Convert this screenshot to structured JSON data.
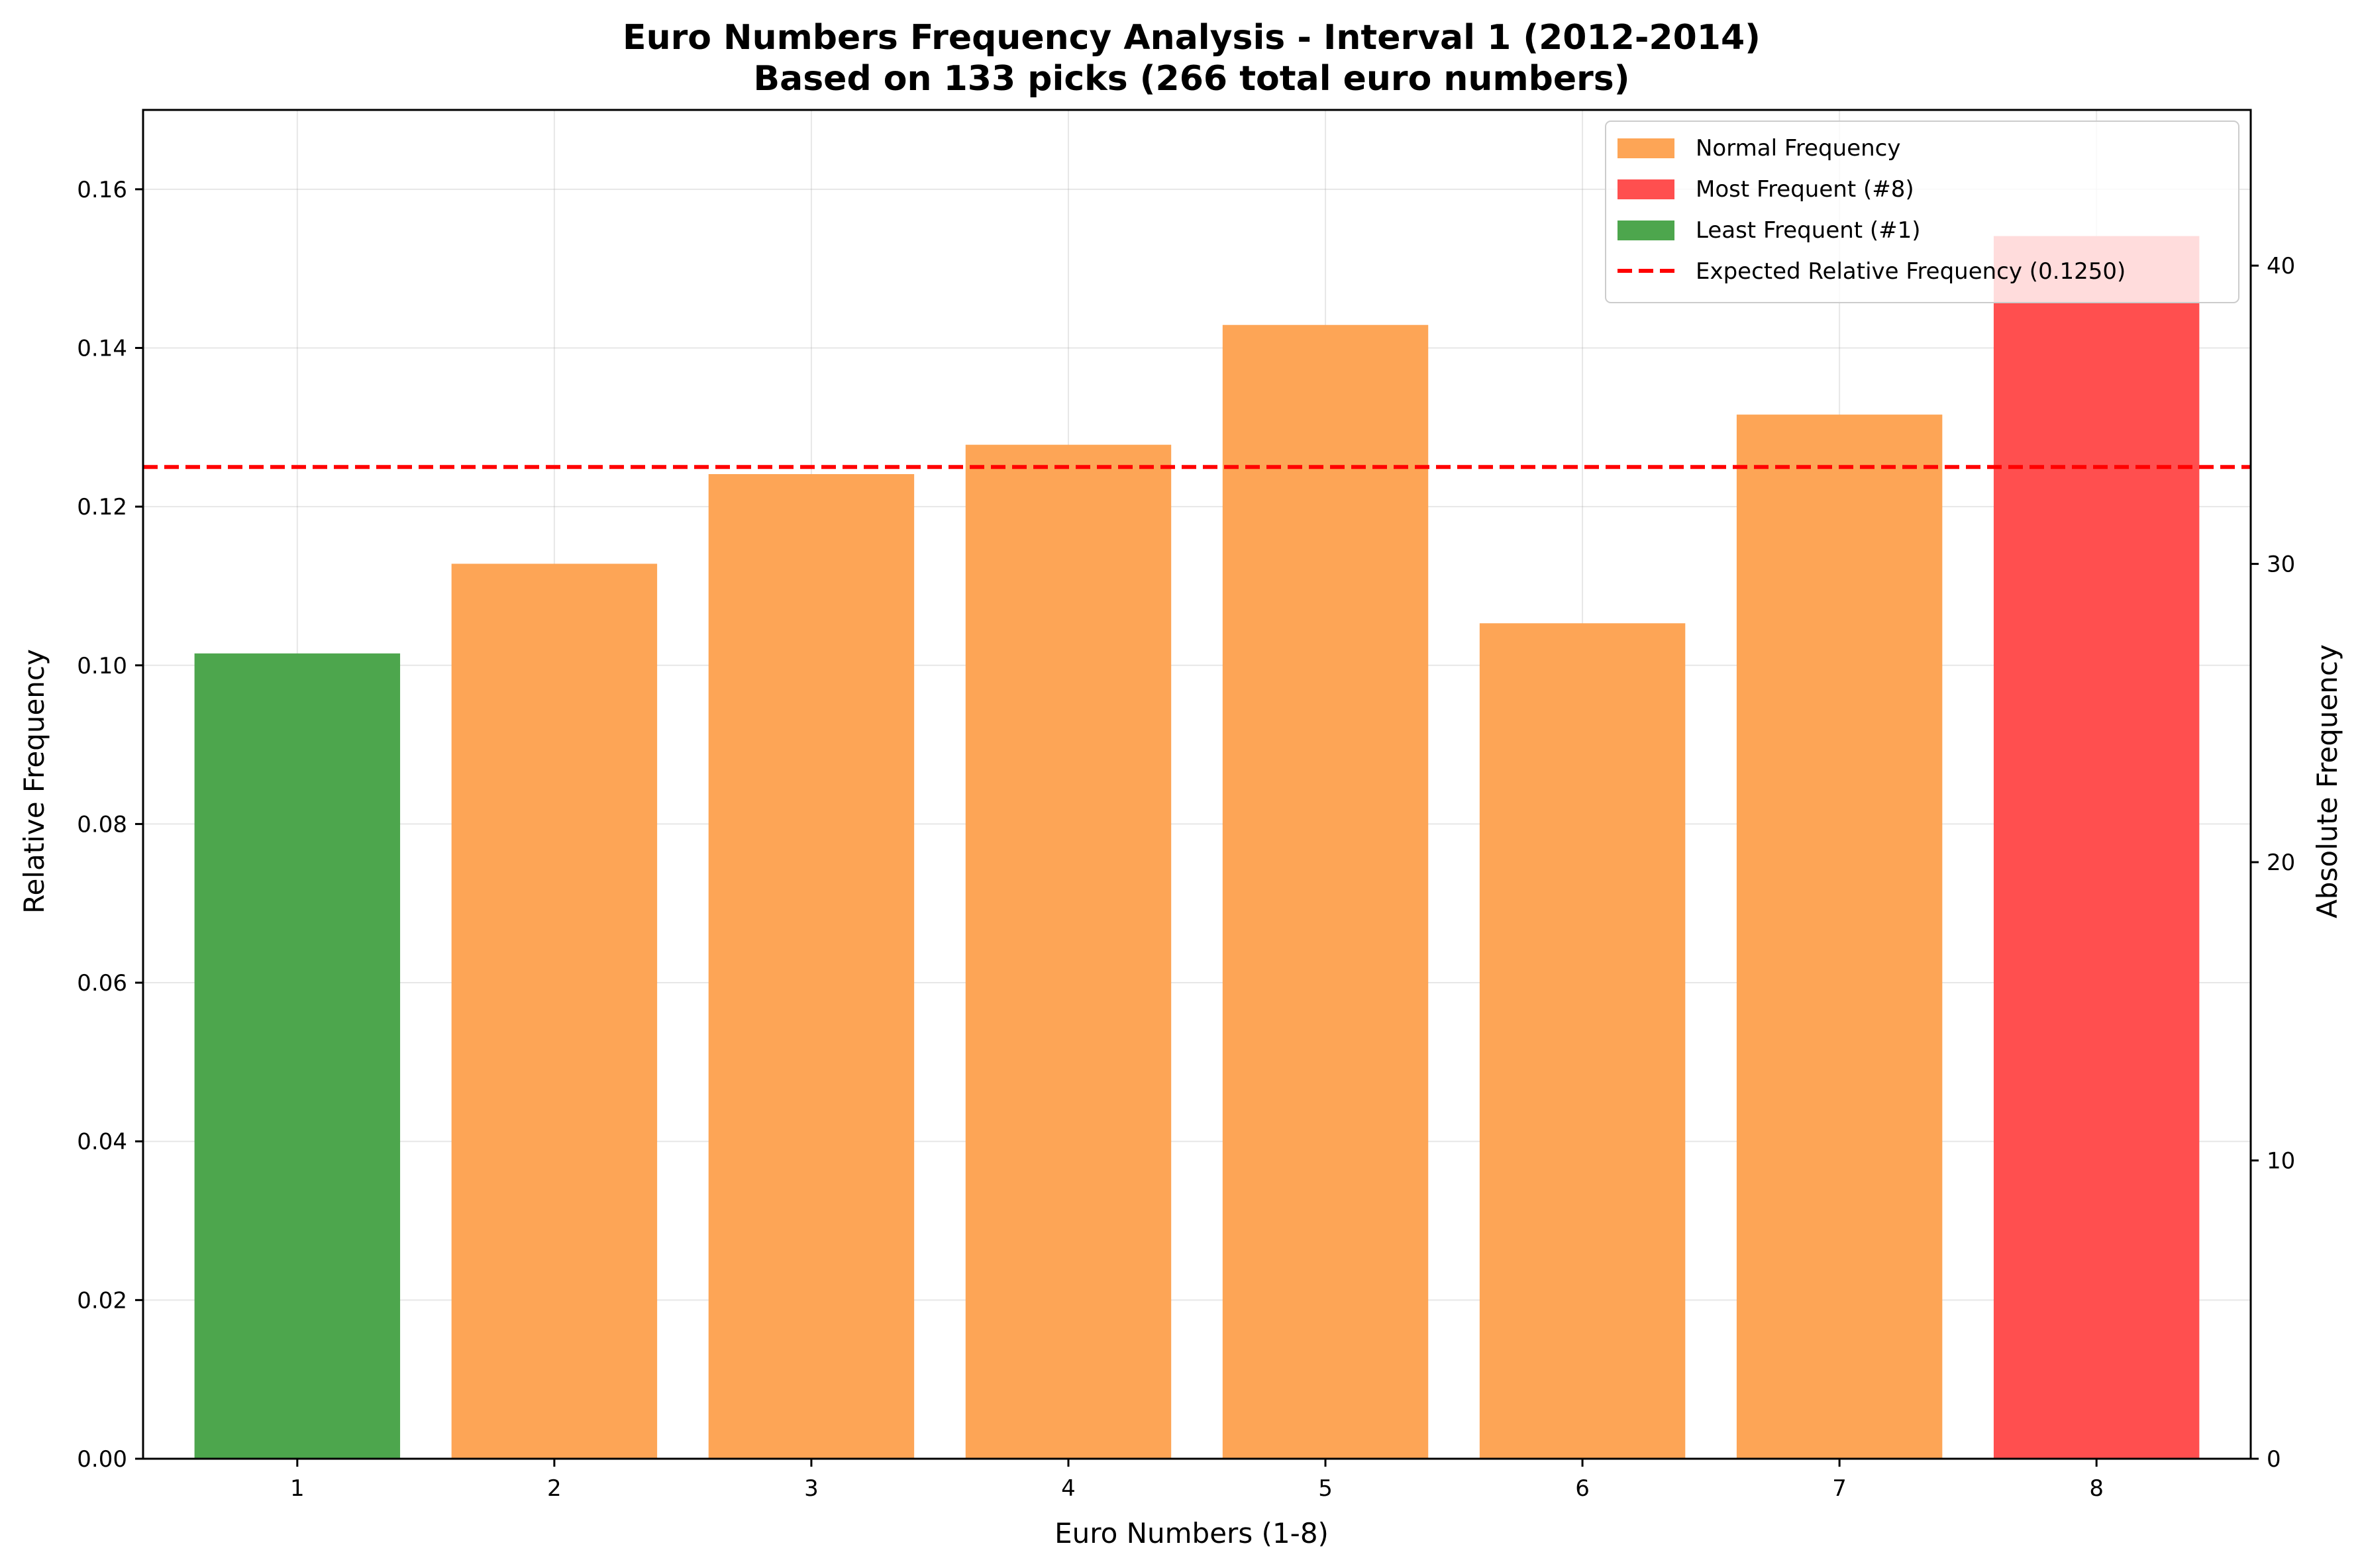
{
  "chart_data": {
    "type": "bar",
    "title": "Euro Numbers Frequency Analysis - Interval 1 (2012-2014)",
    "subtitle": "Based on 133 picks (266 total euro numbers)",
    "xlabel": "Euro Numbers (1-8)",
    "ylabel": "Relative Frequency",
    "y2label": "Absolute Frequency",
    "categories": [
      "1",
      "2",
      "3",
      "4",
      "5",
      "6",
      "7",
      "8"
    ],
    "absolute_values": [
      27,
      30,
      33,
      34,
      38,
      28,
      35,
      41
    ],
    "values": [
      0.1015,
      0.1128,
      0.1241,
      0.1278,
      0.1429,
      0.1053,
      0.1316,
      0.1541
    ],
    "bar_status": [
      "least",
      "normal",
      "normal",
      "normal",
      "normal",
      "normal",
      "normal",
      "most"
    ],
    "ylim": [
      0,
      0.17
    ],
    "y2lim": [
      0,
      45.22
    ],
    "yticks": [
      "0.00",
      "0.02",
      "0.04",
      "0.06",
      "0.08",
      "0.10",
      "0.12",
      "0.14",
      "0.16"
    ],
    "ytick_values": [
      0,
      0.02,
      0.04,
      0.06,
      0.08,
      0.1,
      0.12,
      0.14,
      0.16
    ],
    "y2ticks": [
      "0",
      "10",
      "20",
      "30",
      "40"
    ],
    "y2tick_values": [
      0,
      10,
      20,
      30,
      40
    ],
    "expected_line": {
      "value": 0.125,
      "color": "#ff0000",
      "style": "dashed"
    },
    "colors": {
      "normal": "#fda556",
      "most": "#ff4f4f",
      "least": "#4da64d"
    },
    "grid": true,
    "legend": {
      "placement": "top-right",
      "entries": [
        {
          "label": "Normal Frequency",
          "kind": "patch",
          "color": "#fda556"
        },
        {
          "label": "Most Frequent (#8)",
          "kind": "patch",
          "color": "#ff4f4f"
        },
        {
          "label": "Least Frequent (#1)",
          "kind": "patch",
          "color": "#4da64d"
        },
        {
          "label": "Expected Relative Frequency (0.1250)",
          "kind": "line",
          "color": "#ff0000"
        }
      ]
    }
  }
}
